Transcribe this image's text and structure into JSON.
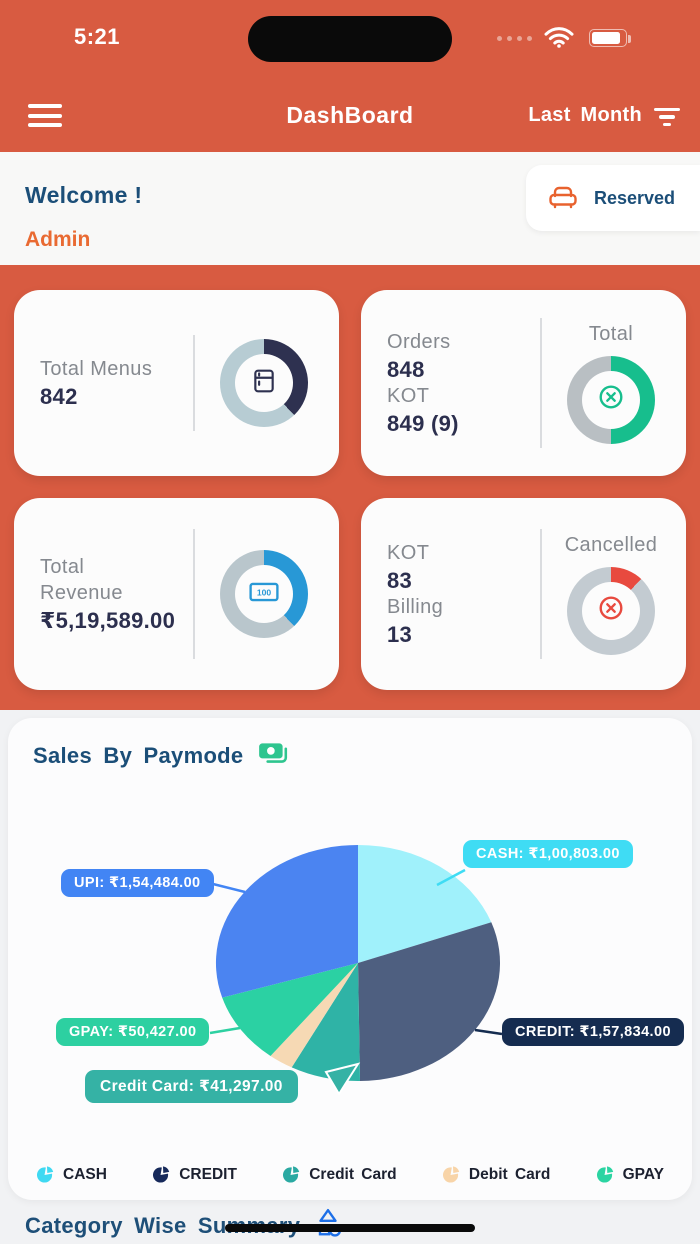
{
  "status_bar": {
    "time": "5:21"
  },
  "header": {
    "title": "DashBoard",
    "range_label": "Last Month"
  },
  "welcome": {
    "greeting": "Welcome !",
    "user": "Admin",
    "reserved_label": "Reserved"
  },
  "cards": [
    {
      "label": "Total Menus",
      "value": "842"
    },
    {
      "label": "Orders",
      "value": "848",
      "label2": "KOT",
      "value2": "849 (9)",
      "chart_label": "Total"
    },
    {
      "label": "Total Revenue",
      "value": "₹5,19,589.00"
    },
    {
      "label": "KOT",
      "value": "83",
      "label2": "Billing",
      "value2": "13",
      "chart_label": "Cancelled"
    }
  ],
  "sales_section": {
    "title": "Sales By Paymode"
  },
  "category_section": {
    "title": "Category Wise Summary"
  },
  "chart_data": [
    {
      "type": "pie",
      "title": "Sales By Paymode",
      "slices": [
        {
          "label": "CASH",
          "value": 100803,
          "display": "CASH: ₹1,00,803.00",
          "color": "#A0F1FB",
          "pill_color": "#3FDCF4"
        },
        {
          "label": "CREDIT",
          "value": 157834,
          "display": "CREDIT: ₹1,57,834.00",
          "color": "#4E5F80",
          "pill_color": "#152C50"
        },
        {
          "label": "Credit Card",
          "value": 41297,
          "display": "Credit Card: ₹41,297.00",
          "color": "#2FB3A6",
          "pill_color": "#35B2A5"
        },
        {
          "label": "Debit Card",
          "value": 14744,
          "display": "",
          "estimated": true,
          "color": "#F6D9B4",
          "pill_color": "#F6D9B4"
        },
        {
          "label": "GPAY",
          "value": 50427,
          "display": "GPAY: ₹50,427.00",
          "color": "#2BD1A3",
          "pill_color": "#2DD0A1"
        },
        {
          "label": "UPI",
          "value": 154484,
          "display": "UPI: ₹1,54,484.00",
          "color": "#4B84F1",
          "pill_color": "#4285F4"
        }
      ],
      "legend": [
        {
          "label": "CASH",
          "color": "#3FD9F2"
        },
        {
          "label": "CREDIT",
          "color": "#16295A"
        },
        {
          "label": "Credit Card",
          "color": "#2AA9A2"
        },
        {
          "label": "Debit Card",
          "color": "#F8D4A8"
        },
        {
          "label": "GPAY",
          "color": "#2BD4A2"
        }
      ],
      "legend_position": "bottom"
    },
    {
      "type": "donut",
      "title": "Total Menus",
      "fraction": 0.38,
      "color": "#2E3150",
      "track": "#B7CCD3"
    },
    {
      "type": "donut",
      "title": "Orders Total",
      "fraction": 0.5,
      "color": "#17BE8D",
      "track": "#B9BFC3"
    },
    {
      "type": "donut",
      "title": "Total Revenue",
      "fraction": 0.38,
      "color": "#2898D6",
      "track": "#B9C6CC"
    },
    {
      "type": "donut",
      "title": "KOT Cancelled",
      "fraction": 0.12,
      "color": "#E84A3F",
      "track": "#C3CBD1"
    }
  ]
}
